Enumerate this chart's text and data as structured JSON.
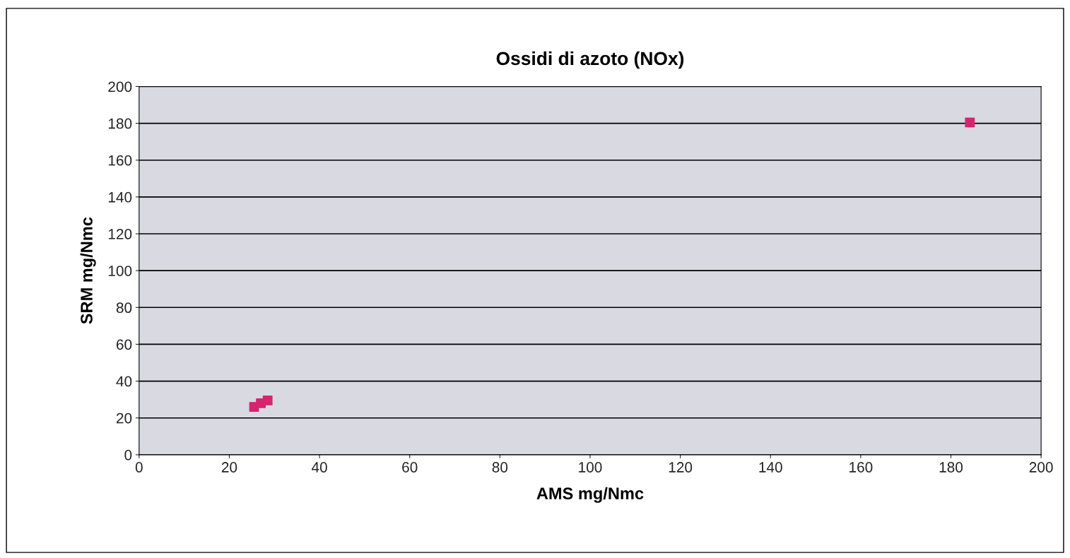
{
  "chart_data": {
    "type": "scatter",
    "title": "Ossidi di azoto (NOx)",
    "xlabel": "AMS mg/Nmc",
    "ylabel": "SRM mg/Nmc",
    "x": [
      25.5,
      27,
      28.5,
      184.2
    ],
    "series": [
      {
        "color": "#d6246e",
        "values": [
          26,
          28,
          29.5,
          180.5
        ]
      }
    ],
    "xlim": [
      0,
      200
    ],
    "ylim": [
      0,
      200
    ],
    "xticks": [
      0,
      20,
      40,
      60,
      80,
      100,
      120,
      140,
      160,
      180,
      200
    ],
    "yticks": [
      0,
      20,
      40,
      60,
      80,
      100,
      120,
      140,
      160,
      180,
      200
    ],
    "grid": "y",
    "marker": "square"
  }
}
